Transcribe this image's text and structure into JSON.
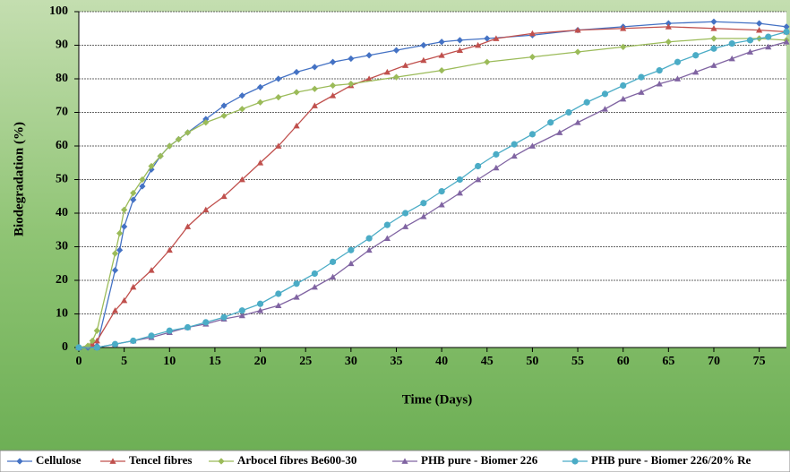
{
  "chart_data": {
    "type": "line",
    "xlabel": "Time (Days)",
    "ylabel": "Biodegradation (%)",
    "xlim": [
      0,
      78
    ],
    "xticks": [
      0,
      5,
      10,
      15,
      20,
      25,
      30,
      35,
      40,
      45,
      50,
      55,
      60,
      65,
      70,
      75
    ],
    "ylim": [
      0,
      100
    ],
    "yticks": [
      0,
      10,
      20,
      30,
      40,
      50,
      60,
      70,
      80,
      90,
      100
    ],
    "grid": true,
    "legend": "bottom",
    "series": [
      {
        "name": "Cellulose",
        "color": "#4472c4",
        "marker": "diamond",
        "x": [
          0,
          1,
          2,
          4,
          4.5,
          5,
          6,
          7,
          8,
          9,
          10,
          11,
          12,
          14,
          16,
          18,
          20,
          22,
          24,
          26,
          28,
          30,
          32,
          35,
          38,
          40,
          42,
          45,
          50,
          55,
          60,
          65,
          70,
          75,
          78
        ],
        "values": [
          0,
          0,
          0.5,
          23,
          29,
          36,
          44,
          48,
          53,
          57,
          60,
          62,
          64,
          68,
          72,
          75,
          77.5,
          80,
          82,
          83.5,
          85,
          86,
          87,
          88.5,
          90,
          91,
          91.5,
          92,
          93,
          94.5,
          95.5,
          96.5,
          97,
          96.5,
          95.5
        ]
      },
      {
        "name": "Tencel fibres",
        "color": "#c0504d",
        "marker": "triangle",
        "x": [
          0,
          1,
          1.5,
          2,
          4,
          5,
          6,
          8,
          10,
          12,
          14,
          16,
          18,
          20,
          22,
          24,
          26,
          28,
          30,
          32,
          34,
          36,
          38,
          40,
          42,
          44,
          46,
          50,
          55,
          60,
          65,
          70,
          75,
          78
        ],
        "values": [
          0,
          0.5,
          1,
          2,
          11,
          14,
          18,
          23,
          29,
          36,
          41,
          45,
          50,
          55,
          60,
          66,
          72,
          75,
          78,
          80,
          82,
          84,
          85.5,
          87,
          88.5,
          90,
          92,
          93.5,
          94.5,
          95,
          95.5,
          95,
          94.5,
          94
        ]
      },
      {
        "name": "Arbocel fibres Be600-30",
        "color": "#9bbb59",
        "marker": "diamond",
        "x": [
          0,
          1,
          1.5,
          2,
          4,
          4.5,
          5,
          6,
          7,
          8,
          9,
          10,
          11,
          12,
          14,
          16,
          18,
          20,
          22,
          24,
          26,
          28,
          30,
          35,
          40,
          45,
          50,
          55,
          60,
          65,
          70,
          75,
          78
        ],
        "values": [
          0,
          0.5,
          2,
          5,
          28,
          34,
          41,
          46,
          50,
          54,
          57,
          60,
          62,
          64,
          67,
          69,
          71,
          73,
          74.5,
          76,
          77,
          78,
          78.5,
          80.5,
          82.5,
          85,
          86.5,
          88,
          89.5,
          91,
          92,
          92,
          91.5
        ]
      },
      {
        "name": "PHB pure - Biomer 226",
        "color": "#8064a2",
        "marker": "triangle",
        "x": [
          0,
          2,
          4,
          6,
          8,
          10,
          12,
          14,
          16,
          18,
          20,
          22,
          24,
          26,
          28,
          30,
          32,
          34,
          36,
          38,
          40,
          42,
          44,
          46,
          48,
          50,
          53,
          55,
          58,
          60,
          62,
          64,
          66,
          68,
          70,
          72,
          74,
          76,
          78
        ],
        "values": [
          0,
          0,
          1,
          2,
          3,
          4.5,
          6,
          7,
          8.5,
          9.5,
          11,
          12.5,
          15,
          18,
          21,
          25,
          29,
          32.5,
          36,
          39,
          42.5,
          46,
          50,
          53.5,
          57,
          60,
          64,
          67,
          71,
          74,
          76,
          78.5,
          80,
          82,
          84,
          86,
          88,
          89.5,
          91
        ]
      },
      {
        "name": "PHB pure - Biomer 226/20% Re",
        "color": "#4bacc6",
        "marker": "circle",
        "x": [
          0,
          2,
          4,
          6,
          8,
          10,
          12,
          14,
          16,
          18,
          20,
          22,
          24,
          26,
          28,
          30,
          32,
          34,
          36,
          38,
          40,
          42,
          44,
          46,
          48,
          50,
          52,
          54,
          56,
          58,
          60,
          62,
          64,
          66,
          68,
          70,
          72,
          74,
          76,
          78
        ],
        "values": [
          0,
          0,
          1,
          2,
          3.5,
          5,
          6,
          7.5,
          9,
          11,
          13,
          16,
          19,
          22,
          25.5,
          29,
          32.5,
          36.5,
          40,
          43,
          46.5,
          50,
          54,
          57.5,
          60.5,
          63.5,
          67,
          70,
          73,
          75.5,
          78,
          80.5,
          82.5,
          85,
          87,
          89,
          90.5,
          91.5,
          92.5,
          94
        ]
      }
    ]
  }
}
